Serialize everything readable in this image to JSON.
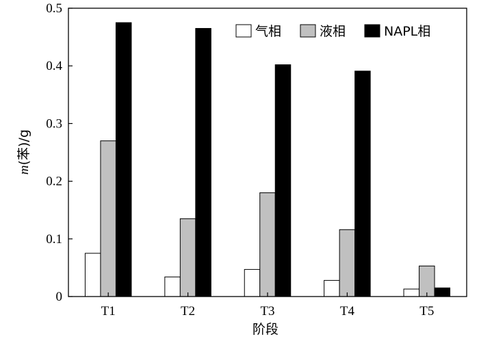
{
  "chart_data": {
    "type": "bar",
    "categories": [
      "T1",
      "T2",
      "T3",
      "T4",
      "T5"
    ],
    "series": [
      {
        "name": "气相",
        "values": [
          0.075,
          0.034,
          0.047,
          0.028,
          0.013
        ],
        "color": "#ffffff"
      },
      {
        "name": "液相",
        "values": [
          0.27,
          0.135,
          0.18,
          0.116,
          0.053
        ],
        "color": "#c0c0c0"
      },
      {
        "name": "NAPL相",
        "values": [
          0.475,
          0.465,
          0.402,
          0.391,
          0.015
        ],
        "color": "#000000"
      }
    ],
    "title": "",
    "xlabel": "阶段",
    "ylabel_italic": "m",
    "ylabel_rest": "(苯)/g",
    "ylim": [
      0,
      0.5
    ],
    "yticks": [
      "0",
      "0.1",
      "0.2",
      "0.3",
      "0.4",
      "0.5"
    ],
    "grid": false,
    "legend_position": "top-right"
  }
}
